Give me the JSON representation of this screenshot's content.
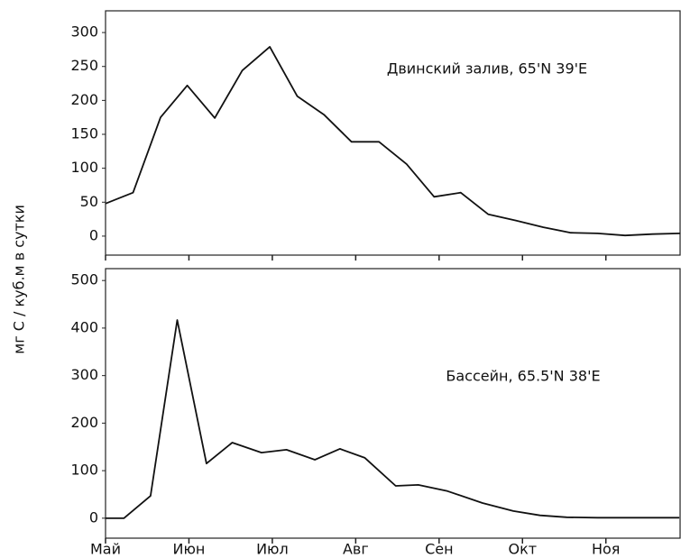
{
  "chart_data": [
    {
      "type": "line",
      "ylabel": "мг С / куб.м в сутки",
      "annotation": "Двинский залив, 65'N 39'E",
      "x": [
        0,
        0.33,
        0.66,
        0.98,
        1.31,
        1.64,
        1.97,
        2.3,
        2.62,
        2.95,
        3.28,
        3.61,
        3.94,
        4.26,
        4.59,
        4.92,
        5.25,
        5.58,
        5.9,
        6.23,
        6.56,
        6.89
      ],
      "values": [
        48,
        64,
        175,
        222,
        174,
        244,
        279,
        206,
        179,
        139,
        139,
        106,
        58,
        64,
        32,
        23,
        13,
        5,
        4,
        1,
        3,
        4
      ],
      "color": "#111111",
      "xlim": [
        0,
        6.89
      ],
      "ylim": [
        -28,
        332
      ],
      "xticks": [
        0,
        1,
        2,
        3,
        4,
        5,
        6
      ],
      "yticks": [
        0,
        50,
        100,
        150,
        200,
        250,
        300
      ]
    },
    {
      "type": "line",
      "annotation": "Бассейн, 65.5'N 38'E",
      "x": [
        0,
        0.22,
        0.54,
        0.86,
        1.21,
        1.52,
        1.87,
        2.17,
        2.51,
        2.81,
        3.11,
        3.48,
        3.75,
        4.1,
        4.52,
        4.89,
        5.21,
        5.53,
        5.9,
        6.2,
        6.55,
        6.88
      ],
      "values": [
        0,
        0,
        47,
        417,
        115,
        159,
        138,
        144,
        123,
        146,
        127,
        68,
        70,
        57,
        32,
        15,
        6,
        2,
        1,
        1,
        1,
        1
      ],
      "color": "#111111",
      "xlim": [
        0,
        6.89
      ],
      "ylim": [
        -42,
        525
      ],
      "xticks": [
        {
          "value": 0,
          "label": "Май"
        },
        {
          "value": 1,
          "label": "Июн"
        },
        {
          "value": 2,
          "label": "Июл"
        },
        {
          "value": 3,
          "label": "Авг"
        },
        {
          "value": 4,
          "label": "Сен"
        },
        {
          "value": 5,
          "label": "Окт"
        },
        {
          "value": 6,
          "label": "Ноя"
        }
      ],
      "yticks": [
        0,
        100,
        200,
        300,
        400,
        500
      ]
    }
  ]
}
